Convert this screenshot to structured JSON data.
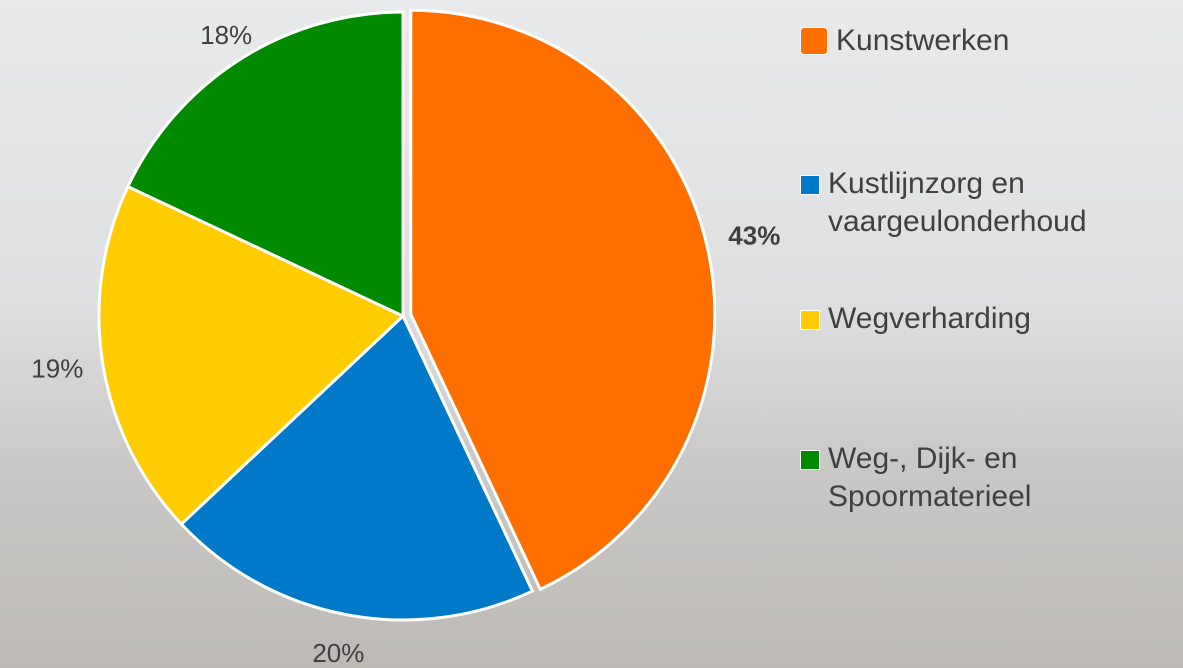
{
  "chart_data": {
    "type": "pie",
    "categories": [
      "Kunstwerken",
      "Kustlijnzorg en vaargeulonderhoud",
      "Wegverharding",
      "Weg-, Dijk- en Spoormaterieel"
    ],
    "values": [
      43,
      20,
      19,
      18
    ],
    "value_labels": [
      "43%",
      "20%",
      "19%",
      "18%"
    ],
    "colors": [
      "#ff6f00",
      "#0079c9",
      "#ffcc00",
      "#008a00"
    ],
    "legend": "right"
  }
}
